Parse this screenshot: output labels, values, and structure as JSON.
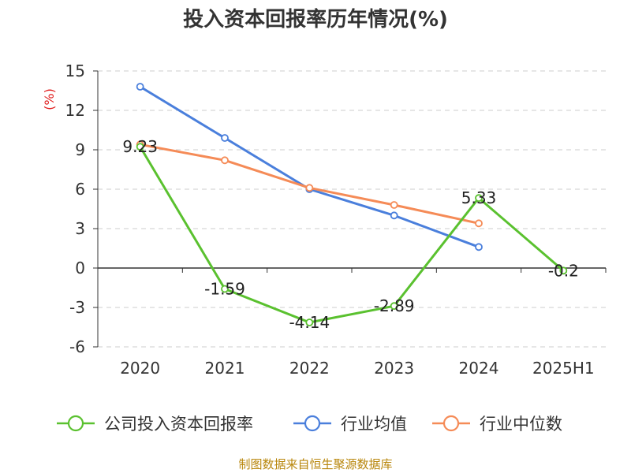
{
  "chart_data": {
    "type": "line",
    "title": "投入资本回报率历年情况(%)",
    "ylabel": "(%)",
    "categories": [
      "2020",
      "2021",
      "2022",
      "2023",
      "2024",
      "2025H1"
    ],
    "yticks": [
      "15",
      "12",
      "9",
      "6",
      "3",
      "0",
      "-3",
      "-6"
    ],
    "ylim": [
      -6,
      15
    ],
    "grid": true,
    "legend_position": "bottom",
    "series": [
      {
        "name": "公司投入资本回报率",
        "color": "#5ac12f",
        "values": [
          9.23,
          -1.59,
          -4.14,
          -2.89,
          5.33,
          -0.2
        ],
        "labels": [
          "9.23",
          "-1.59",
          "-4.14",
          "-2.89",
          "5.33",
          "-0.2"
        ]
      },
      {
        "name": "行业均值",
        "color": "#4a7fdc",
        "values": [
          13.8,
          9.9,
          6.0,
          4.0,
          1.6,
          null
        ]
      },
      {
        "name": "行业中位数",
        "color": "#f58b57",
        "values": [
          9.4,
          8.2,
          6.1,
          4.8,
          3.4,
          null
        ]
      }
    ]
  },
  "footer": {
    "source": "制图数据来自恒生聚源数据库"
  }
}
